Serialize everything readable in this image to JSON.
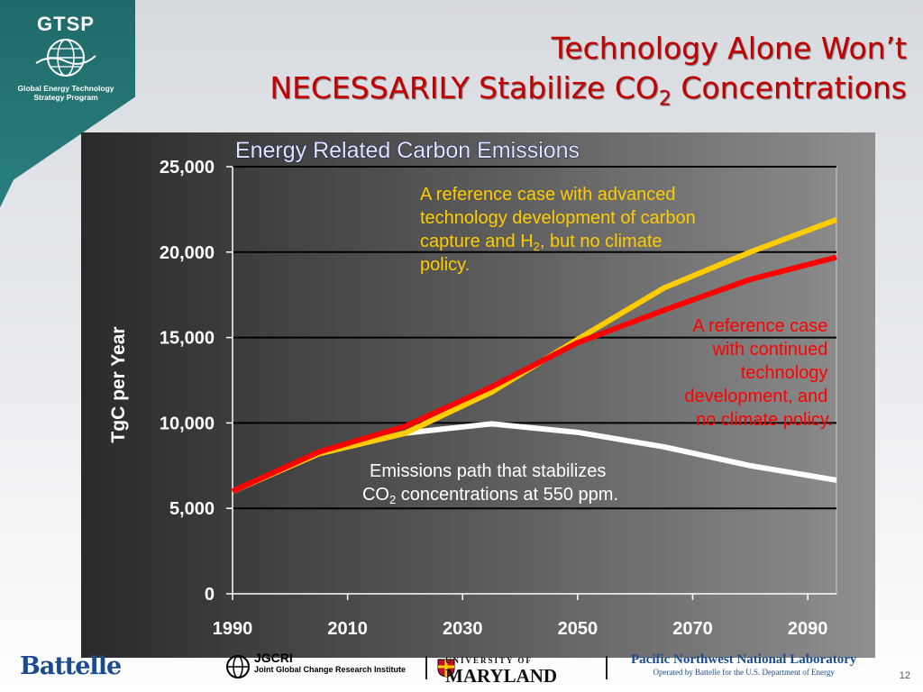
{
  "logo": {
    "acronym": "GTSP",
    "subtitle_1": "Global Energy Technology",
    "subtitle_2": "Strategy Program"
  },
  "slide": {
    "title_line1": "Technology Alone Won’t",
    "title_line2_pre": "NECESSARILY Stabilize CO",
    "title_line2_sub": "2",
    "title_line2_post": " Concentrations",
    "page_number": "12"
  },
  "chart_data": {
    "type": "line",
    "title": "Energy Related Carbon Emissions",
    "xlabel": "",
    "ylabel": "TgC per Year",
    "xlim": [
      1990,
      2095
    ],
    "ylim": [
      0,
      25000
    ],
    "x_ticks": [
      1990,
      2010,
      2030,
      2050,
      2070,
      2090
    ],
    "y_ticks": [
      0,
      5000,
      10000,
      15000,
      20000,
      25000
    ],
    "x_tick_labels": [
      "1990",
      "2010",
      "2030",
      "2050",
      "2070",
      "2090"
    ],
    "y_tick_labels": [
      "0",
      "5,000",
      "10,000",
      "15,000",
      "20,000",
      "25,000"
    ],
    "grid": "horizontal",
    "series": [
      {
        "key": "stabilize",
        "color": "#ffffff",
        "x": [
          1990,
          2005,
          2020,
          2035,
          2050,
          2065,
          2080,
          2095
        ],
        "y": [
          6000,
          8200,
          9400,
          9950,
          9450,
          8600,
          7500,
          6650
        ]
      },
      {
        "key": "advanced",
        "color": "#ffcc00",
        "x": [
          1990,
          2005,
          2020,
          2035,
          2050,
          2065,
          2080,
          2095
        ],
        "y": [
          6000,
          8200,
          9400,
          11800,
          14900,
          17900,
          20000,
          21900
        ]
      },
      {
        "key": "reference",
        "color": "#ff0000",
        "x": [
          1990,
          2005,
          2020,
          2035,
          2050,
          2065,
          2080,
          2095
        ],
        "y": [
          6000,
          8300,
          9800,
          12100,
          14700,
          16600,
          18400,
          19700
        ]
      }
    ],
    "annotations": {
      "advanced": {
        "line1": "A reference case with advanced",
        "line2": "technology development of carbon",
        "line3_pre": "capture and H",
        "line3_sub": "2",
        "line3_post": ", but no climate",
        "line4": "policy."
      },
      "reference": {
        "line1": "A reference case",
        "line2": "with continued",
        "line3": "technology",
        "line4": "development, and",
        "line5": "no climate policy."
      },
      "stabilize": {
        "line1": "Emissions path that stabilizes",
        "line2_pre": "CO",
        "line2_sub": "2",
        "line2_post": " concentrations at 550 ppm."
      }
    }
  },
  "footer": {
    "battelle": "Battelle",
    "jgcri": "JGCRI",
    "jgcri_sub": "Joint Global Change Research Institute",
    "umd_top": "UNIVERSITY OF",
    "umd": "MARYLAND",
    "pnnl": "Pacific Northwest National Laboratory",
    "pnnl_sub": "Operated by Battelle for the U.S. Department of Energy"
  }
}
